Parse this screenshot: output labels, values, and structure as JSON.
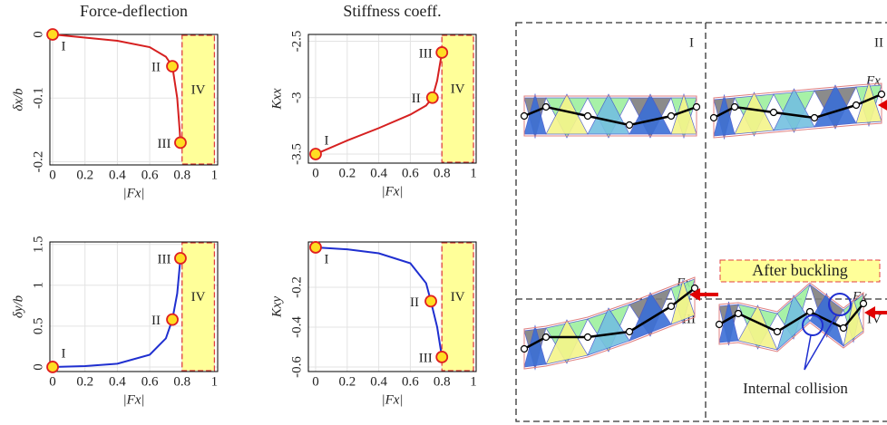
{
  "chart_data": [
    {
      "type": "line",
      "title": "Force-deflection",
      "x_label": "|Fx|",
      "y_label": "δx/b",
      "color": "#d62020",
      "x": [
        0,
        0.2,
        0.4,
        0.6,
        0.7,
        0.74,
        0.77,
        0.785,
        0.79
      ],
      "values": [
        0,
        -0.005,
        -0.01,
        -0.02,
        -0.035,
        -0.05,
        -0.1,
        -0.15,
        -0.17
      ],
      "xlim": [
        -0.017,
        1.02
      ],
      "ylim": [
        -0.205,
        0
      ],
      "xticks": [
        0,
        0.2,
        0.4,
        0.6,
        0.8,
        1
      ],
      "yticks": [
        -0.2,
        -0.1,
        0
      ],
      "grid": true,
      "points": [
        {
          "label": "I",
          "x": 0,
          "y": 0
        },
        {
          "label": "II",
          "x": 0.74,
          "y": -0.05
        },
        {
          "label": "III",
          "x": 0.79,
          "y": -0.17
        }
      ],
      "region": {
        "label": "IV",
        "x": [
          0.8,
          1
        ]
      }
    },
    {
      "type": "line",
      "title": "Stiffness coeff.",
      "x_label": "|Fx|",
      "y_label": "Kxx",
      "color": "#d62020",
      "x": [
        0,
        0.2,
        0.4,
        0.6,
        0.7,
        0.74,
        0.77,
        0.8
      ],
      "values": [
        -3.5,
        -3.38,
        -3.27,
        -3.15,
        -3.07,
        -3.0,
        -2.85,
        -2.6
      ],
      "xlim": [
        -0.046,
        1.017
      ],
      "ylim": [
        -3.58,
        -2.44
      ],
      "xticks": [
        0,
        0.2,
        0.4,
        0.6,
        0.8,
        1
      ],
      "yticks": [
        -3.5,
        -3,
        -2.5
      ],
      "grid": true,
      "points": [
        {
          "label": "I",
          "x": 0,
          "y": -3.5
        },
        {
          "label": "II",
          "x": 0.74,
          "y": -3.0
        },
        {
          "label": "III",
          "x": 0.8,
          "y": -2.6
        }
      ],
      "region": {
        "label": "IV",
        "x": [
          0.8,
          1
        ]
      }
    },
    {
      "type": "line",
      "x_label": "|Fx|",
      "y_label": "δy/b",
      "color": "#1f2fd0",
      "x": [
        0,
        0.2,
        0.4,
        0.6,
        0.7,
        0.74,
        0.77,
        0.79
      ],
      "values": [
        0,
        0.01,
        0.04,
        0.15,
        0.35,
        0.58,
        0.9,
        1.33
      ],
      "xlim": [
        -0.017,
        1.02
      ],
      "ylim": [
        -0.056,
        1.53
      ],
      "xticks": [
        0,
        0.2,
        0.4,
        0.6,
        0.8,
        1
      ],
      "yticks": [
        0,
        0.5,
        1,
        1.5
      ],
      "grid": true,
      "points": [
        {
          "label": "I",
          "x": 0,
          "y": 0
        },
        {
          "label": "II",
          "x": 0.74,
          "y": 0.58
        },
        {
          "label": "III",
          "x": 0.79,
          "y": 1.33
        }
      ],
      "region": {
        "label": "IV",
        "x": [
          0.8,
          1
        ]
      }
    },
    {
      "type": "line",
      "x_label": "|Fx|",
      "y_label": "Kxy",
      "color": "#1f2fd0",
      "x": [
        0,
        0.2,
        0.4,
        0.6,
        0.7,
        0.73,
        0.77,
        0.8
      ],
      "values": [
        0,
        -0.01,
        -0.03,
        -0.08,
        -0.18,
        -0.27,
        -0.4,
        -0.55
      ],
      "xlim": [
        -0.046,
        1.017
      ],
      "ylim": [
        -0.623,
        0.027
      ],
      "xticks": [
        0,
        0.2,
        0.4,
        0.6,
        0.8,
        1
      ],
      "yticks": [
        -0.6,
        -0.4,
        -0.2
      ],
      "grid": true,
      "points": [
        {
          "label": "I",
          "x": 0,
          "y": 0
        },
        {
          "label": "II",
          "x": 0.73,
          "y": -0.27
        },
        {
          "label": "III",
          "x": 0.8,
          "y": -0.55
        }
      ],
      "region": {
        "label": "IV",
        "x": [
          0.8,
          1
        ]
      }
    }
  ],
  "panels": {
    "labels": [
      "I",
      "II",
      "III",
      "IV"
    ],
    "force_labels": [
      "Fx",
      "Fx",
      "Fx"
    ],
    "after_buckling": "After buckling",
    "internal_collision": "Internal collision"
  }
}
